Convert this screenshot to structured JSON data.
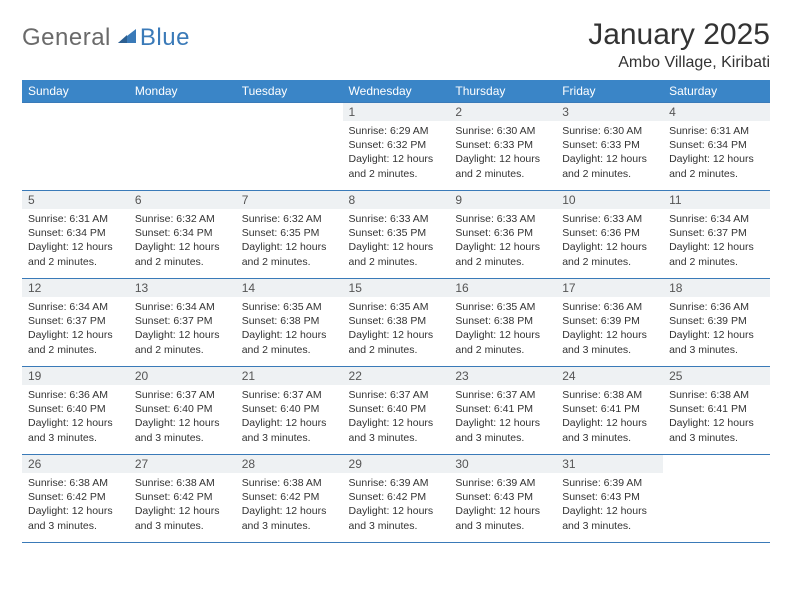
{
  "logo": {
    "general": "General",
    "blue": "Blue"
  },
  "title": "January 2025",
  "location": "Ambo Village, Kiribati",
  "colors": {
    "header_bg": "#3a85c7",
    "header_text": "#ffffff",
    "border": "#3a7ab8",
    "daynum_bg": "#eef1f3",
    "text": "#333333",
    "logo_gray": "#6a6a6a",
    "logo_blue": "#3a7ab8"
  },
  "weekdays": [
    "Sunday",
    "Monday",
    "Tuesday",
    "Wednesday",
    "Thursday",
    "Friday",
    "Saturday"
  ],
  "weeks": [
    [
      {
        "n": "",
        "sr": "",
        "ss": "",
        "dl": ""
      },
      {
        "n": "",
        "sr": "",
        "ss": "",
        "dl": ""
      },
      {
        "n": "",
        "sr": "",
        "ss": "",
        "dl": ""
      },
      {
        "n": "1",
        "sr": "Sunrise: 6:29 AM",
        "ss": "Sunset: 6:32 PM",
        "dl": "Daylight: 12 hours and 2 minutes."
      },
      {
        "n": "2",
        "sr": "Sunrise: 6:30 AM",
        "ss": "Sunset: 6:33 PM",
        "dl": "Daylight: 12 hours and 2 minutes."
      },
      {
        "n": "3",
        "sr": "Sunrise: 6:30 AM",
        "ss": "Sunset: 6:33 PM",
        "dl": "Daylight: 12 hours and 2 minutes."
      },
      {
        "n": "4",
        "sr": "Sunrise: 6:31 AM",
        "ss": "Sunset: 6:34 PM",
        "dl": "Daylight: 12 hours and 2 minutes."
      }
    ],
    [
      {
        "n": "5",
        "sr": "Sunrise: 6:31 AM",
        "ss": "Sunset: 6:34 PM",
        "dl": "Daylight: 12 hours and 2 minutes."
      },
      {
        "n": "6",
        "sr": "Sunrise: 6:32 AM",
        "ss": "Sunset: 6:34 PM",
        "dl": "Daylight: 12 hours and 2 minutes."
      },
      {
        "n": "7",
        "sr": "Sunrise: 6:32 AM",
        "ss": "Sunset: 6:35 PM",
        "dl": "Daylight: 12 hours and 2 minutes."
      },
      {
        "n": "8",
        "sr": "Sunrise: 6:33 AM",
        "ss": "Sunset: 6:35 PM",
        "dl": "Daylight: 12 hours and 2 minutes."
      },
      {
        "n": "9",
        "sr": "Sunrise: 6:33 AM",
        "ss": "Sunset: 6:36 PM",
        "dl": "Daylight: 12 hours and 2 minutes."
      },
      {
        "n": "10",
        "sr": "Sunrise: 6:33 AM",
        "ss": "Sunset: 6:36 PM",
        "dl": "Daylight: 12 hours and 2 minutes."
      },
      {
        "n": "11",
        "sr": "Sunrise: 6:34 AM",
        "ss": "Sunset: 6:37 PM",
        "dl": "Daylight: 12 hours and 2 minutes."
      }
    ],
    [
      {
        "n": "12",
        "sr": "Sunrise: 6:34 AM",
        "ss": "Sunset: 6:37 PM",
        "dl": "Daylight: 12 hours and 2 minutes."
      },
      {
        "n": "13",
        "sr": "Sunrise: 6:34 AM",
        "ss": "Sunset: 6:37 PM",
        "dl": "Daylight: 12 hours and 2 minutes."
      },
      {
        "n": "14",
        "sr": "Sunrise: 6:35 AM",
        "ss": "Sunset: 6:38 PM",
        "dl": "Daylight: 12 hours and 2 minutes."
      },
      {
        "n": "15",
        "sr": "Sunrise: 6:35 AM",
        "ss": "Sunset: 6:38 PM",
        "dl": "Daylight: 12 hours and 2 minutes."
      },
      {
        "n": "16",
        "sr": "Sunrise: 6:35 AM",
        "ss": "Sunset: 6:38 PM",
        "dl": "Daylight: 12 hours and 2 minutes."
      },
      {
        "n": "17",
        "sr": "Sunrise: 6:36 AM",
        "ss": "Sunset: 6:39 PM",
        "dl": "Daylight: 12 hours and 3 minutes."
      },
      {
        "n": "18",
        "sr": "Sunrise: 6:36 AM",
        "ss": "Sunset: 6:39 PM",
        "dl": "Daylight: 12 hours and 3 minutes."
      }
    ],
    [
      {
        "n": "19",
        "sr": "Sunrise: 6:36 AM",
        "ss": "Sunset: 6:40 PM",
        "dl": "Daylight: 12 hours and 3 minutes."
      },
      {
        "n": "20",
        "sr": "Sunrise: 6:37 AM",
        "ss": "Sunset: 6:40 PM",
        "dl": "Daylight: 12 hours and 3 minutes."
      },
      {
        "n": "21",
        "sr": "Sunrise: 6:37 AM",
        "ss": "Sunset: 6:40 PM",
        "dl": "Daylight: 12 hours and 3 minutes."
      },
      {
        "n": "22",
        "sr": "Sunrise: 6:37 AM",
        "ss": "Sunset: 6:40 PM",
        "dl": "Daylight: 12 hours and 3 minutes."
      },
      {
        "n": "23",
        "sr": "Sunrise: 6:37 AM",
        "ss": "Sunset: 6:41 PM",
        "dl": "Daylight: 12 hours and 3 minutes."
      },
      {
        "n": "24",
        "sr": "Sunrise: 6:38 AM",
        "ss": "Sunset: 6:41 PM",
        "dl": "Daylight: 12 hours and 3 minutes."
      },
      {
        "n": "25",
        "sr": "Sunrise: 6:38 AM",
        "ss": "Sunset: 6:41 PM",
        "dl": "Daylight: 12 hours and 3 minutes."
      }
    ],
    [
      {
        "n": "26",
        "sr": "Sunrise: 6:38 AM",
        "ss": "Sunset: 6:42 PM",
        "dl": "Daylight: 12 hours and 3 minutes."
      },
      {
        "n": "27",
        "sr": "Sunrise: 6:38 AM",
        "ss": "Sunset: 6:42 PM",
        "dl": "Daylight: 12 hours and 3 minutes."
      },
      {
        "n": "28",
        "sr": "Sunrise: 6:38 AM",
        "ss": "Sunset: 6:42 PM",
        "dl": "Daylight: 12 hours and 3 minutes."
      },
      {
        "n": "29",
        "sr": "Sunrise: 6:39 AM",
        "ss": "Sunset: 6:42 PM",
        "dl": "Daylight: 12 hours and 3 minutes."
      },
      {
        "n": "30",
        "sr": "Sunrise: 6:39 AM",
        "ss": "Sunset: 6:43 PM",
        "dl": "Daylight: 12 hours and 3 minutes."
      },
      {
        "n": "31",
        "sr": "Sunrise: 6:39 AM",
        "ss": "Sunset: 6:43 PM",
        "dl": "Daylight: 12 hours and 3 minutes."
      },
      {
        "n": "",
        "sr": "",
        "ss": "",
        "dl": ""
      }
    ]
  ]
}
